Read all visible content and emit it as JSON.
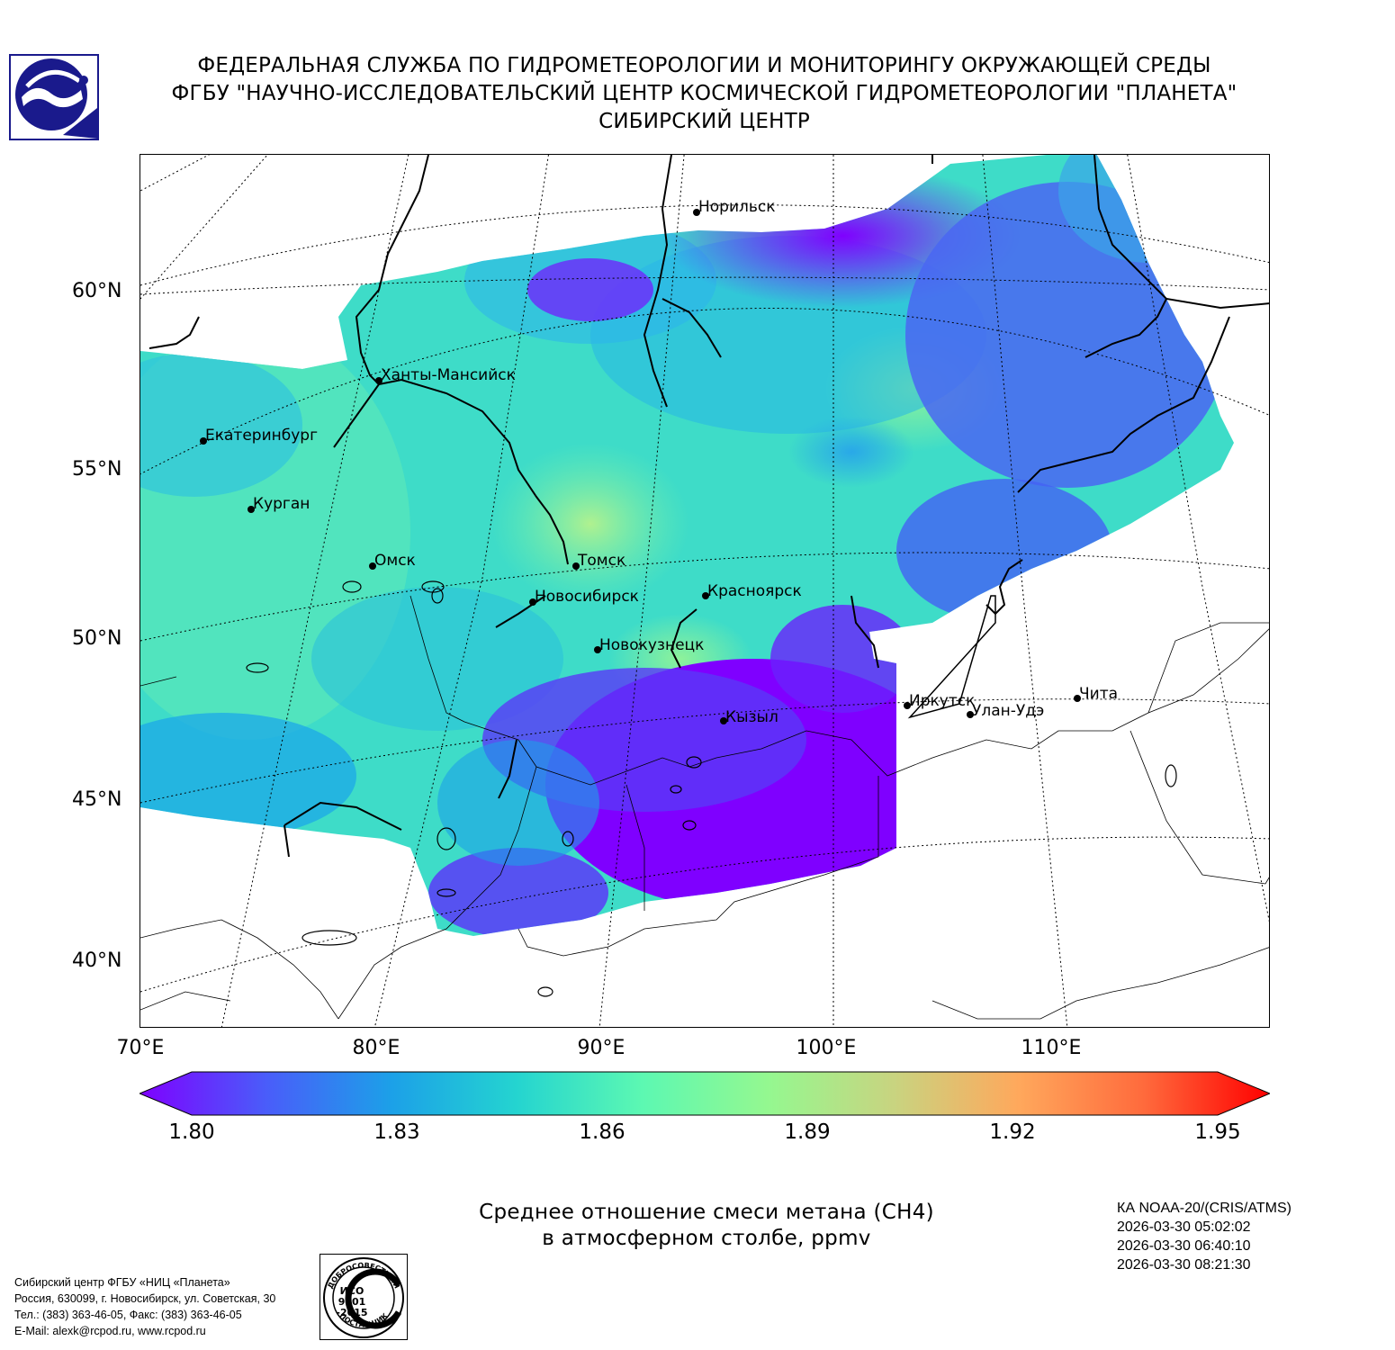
{
  "header": {
    "line1": "ФЕДЕРАЛЬНАЯ СЛУЖБА ПО ГИДРОМЕТЕОРОЛОГИИ И МОНИТОРИНГУ ОКРУЖАЮЩЕЙ СРЕДЫ",
    "line2": "ФГБУ \"НАУЧНО-ИССЛЕДОВАТЕЛЬСКИЙ ЦЕНТР КОСМИЧЕСКОЙ ГИДРОМЕТЕОРОЛОГИИ \"ПЛАНЕТА\"",
    "line3": "СИБИРСКИЙ ЦЕНТР"
  },
  "logo": {
    "icon": "roshydromet-planeta-logo",
    "color": "#1a1a8c"
  },
  "map": {
    "lat_labels": [
      "60°N",
      "55°N",
      "50°N",
      "45°N",
      "40°N"
    ],
    "lon_labels": [
      "70°E",
      "80°E",
      "90°E",
      "100°E",
      "110°E"
    ],
    "cities": [
      {
        "name": "Норильск"
      },
      {
        "name": "Ханты-Мансийск"
      },
      {
        "name": "Екатеринбург"
      },
      {
        "name": "Курган"
      },
      {
        "name": "Омск"
      },
      {
        "name": "Томск"
      },
      {
        "name": "Новосибирск"
      },
      {
        "name": "Красноярск"
      },
      {
        "name": "Новокузнецк"
      },
      {
        "name": "Кызыл"
      },
      {
        "name": "Иркутск"
      },
      {
        "name": "Улан-Удэ"
      },
      {
        "name": "Чита"
      }
    ]
  },
  "colorbar": {
    "min": 1.8,
    "max": 1.95,
    "ticks": [
      "1.80",
      "1.83",
      "1.86",
      "1.89",
      "1.92",
      "1.95"
    ],
    "colors": [
      "#7f00ff",
      "#4a5cfa",
      "#1ca0e8",
      "#24d4d0",
      "#5cf8b2",
      "#94f890",
      "#c8d480",
      "#ffa85c",
      "#ff6a3c",
      "#ff0000"
    ]
  },
  "caption": {
    "line1": "Среднее отношение смеси метана (CH4)",
    "line2": "в атмосферном столбе, ppmv"
  },
  "satellite": {
    "name": "КА NOAA-20/(CRIS/ATMS)",
    "times": [
      "2026-03-30 05:02:02",
      "2026-03-30 06:40:10",
      "2026-03-30 08:21:30"
    ]
  },
  "footer": {
    "lines": [
      "Сибирский центр ФГБУ «НИЦ «Планета»",
      "Россия, 630099, г. Новосибирск, ул. Советская, 30",
      "Тел.: (383) 363-46-05, Факс: (383) 363-46-05",
      "E-Mail: alexk@rcpod.ru, www.rcpod.ru"
    ]
  },
  "iso_stamp": {
    "top_text": "ДОБРОСОВЕСТНЫЙ",
    "line1": "ИСО",
    "line2": "9001",
    "line3": "-2015",
    "bottom_text": "ПОСТАВЩИК"
  }
}
